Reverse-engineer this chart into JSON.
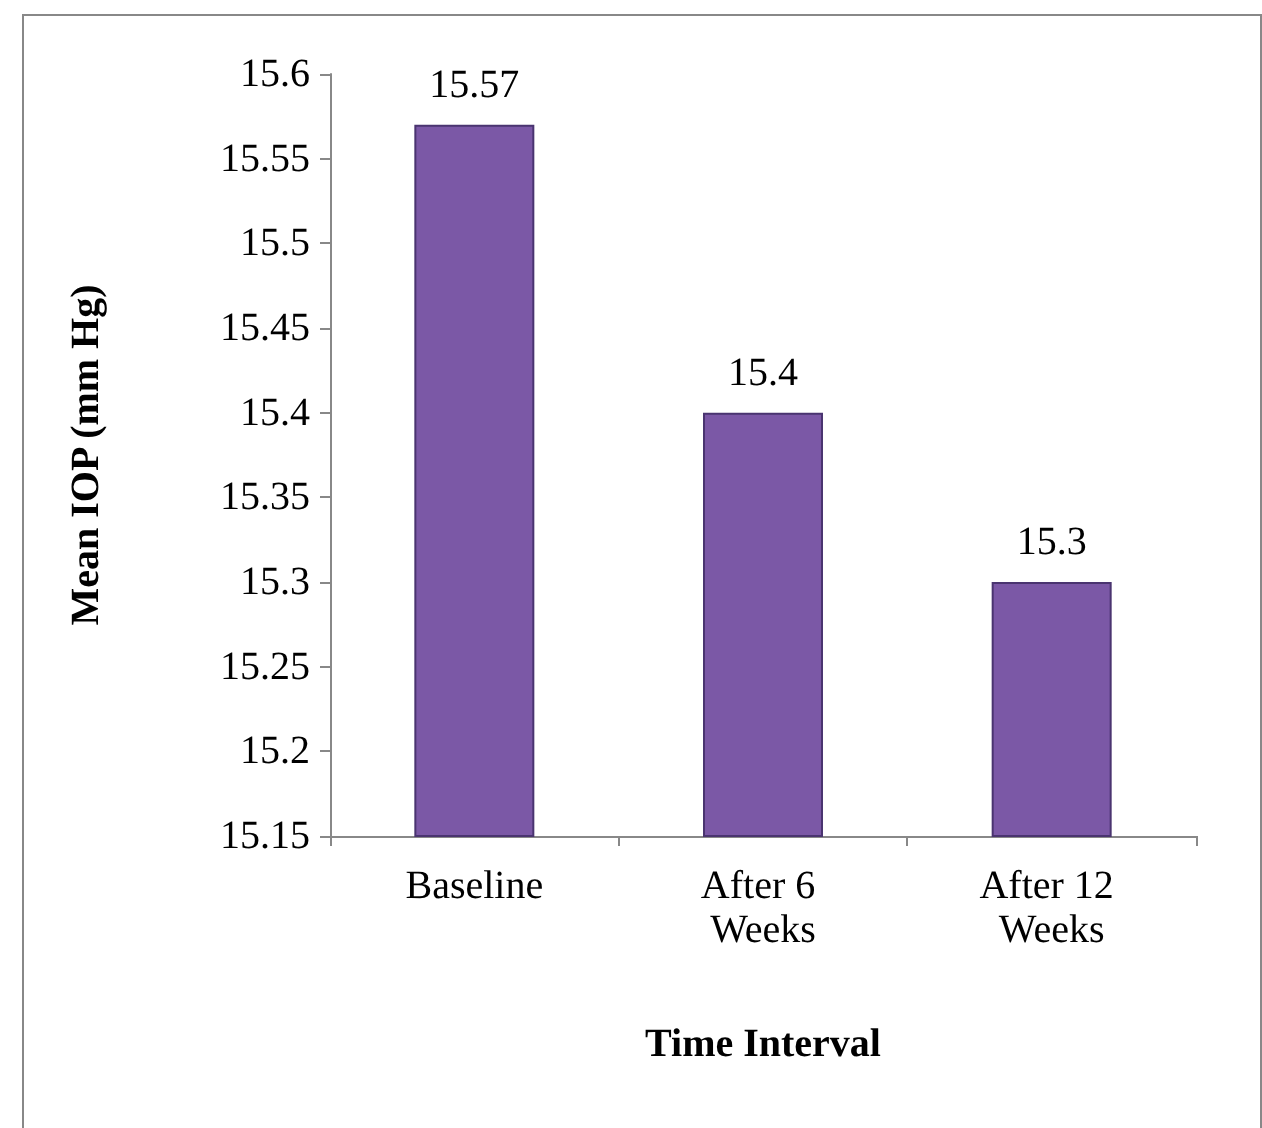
{
  "chart_data": {
    "type": "bar",
    "xlabel": "Time Interval",
    "ylabel": "Mean IOP (mm Hg)",
    "categories": [
      "Baseline",
      "After 6 Weeks",
      "After 12 Weeks"
    ],
    "values": [
      15.57,
      15.4,
      15.3
    ],
    "color": "#7b58a6",
    "ylim": [
      15.15,
      15.6
    ],
    "yticks": [
      15.15,
      15.2,
      15.25,
      15.3,
      15.35,
      15.4,
      15.45,
      15.5,
      15.55,
      15.6
    ],
    "grid": false,
    "data_labels": true
  }
}
